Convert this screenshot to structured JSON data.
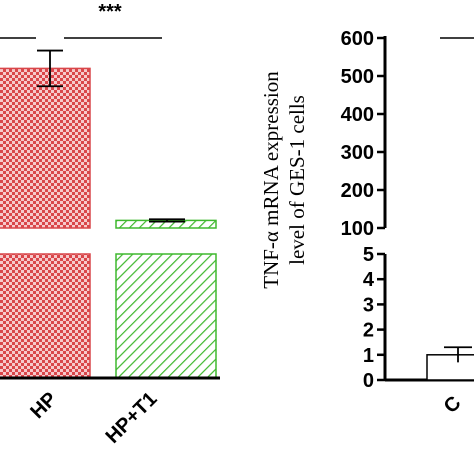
{
  "chart_data": [
    {
      "type": "bar",
      "categories": [
        "HP",
        "HP+T1"
      ],
      "values": [
        520,
        120
      ],
      "errors": [
        47,
        3
      ],
      "series_colors": [
        "#d9464a",
        "#3fb82e"
      ],
      "patterns": [
        "checker",
        "diagonal"
      ],
      "significance": "***",
      "axis_break": true
    },
    {
      "type": "bar",
      "title": "",
      "ylabel_line1": "TNF-α mRNA expression",
      "ylabel_line2": "level of GES-1 cells",
      "categories": [
        "C"
      ],
      "values": [
        1.0
      ],
      "errors": [
        0.3
      ],
      "yticks_upper": [
        "600",
        "500",
        "400",
        "300",
        "200",
        "100"
      ],
      "yticks_lower": [
        "5",
        "4",
        "3",
        "2",
        "1",
        "0"
      ],
      "upper_range": [
        100,
        600
      ],
      "lower_range": [
        0,
        5
      ],
      "axis_break": true
    }
  ]
}
